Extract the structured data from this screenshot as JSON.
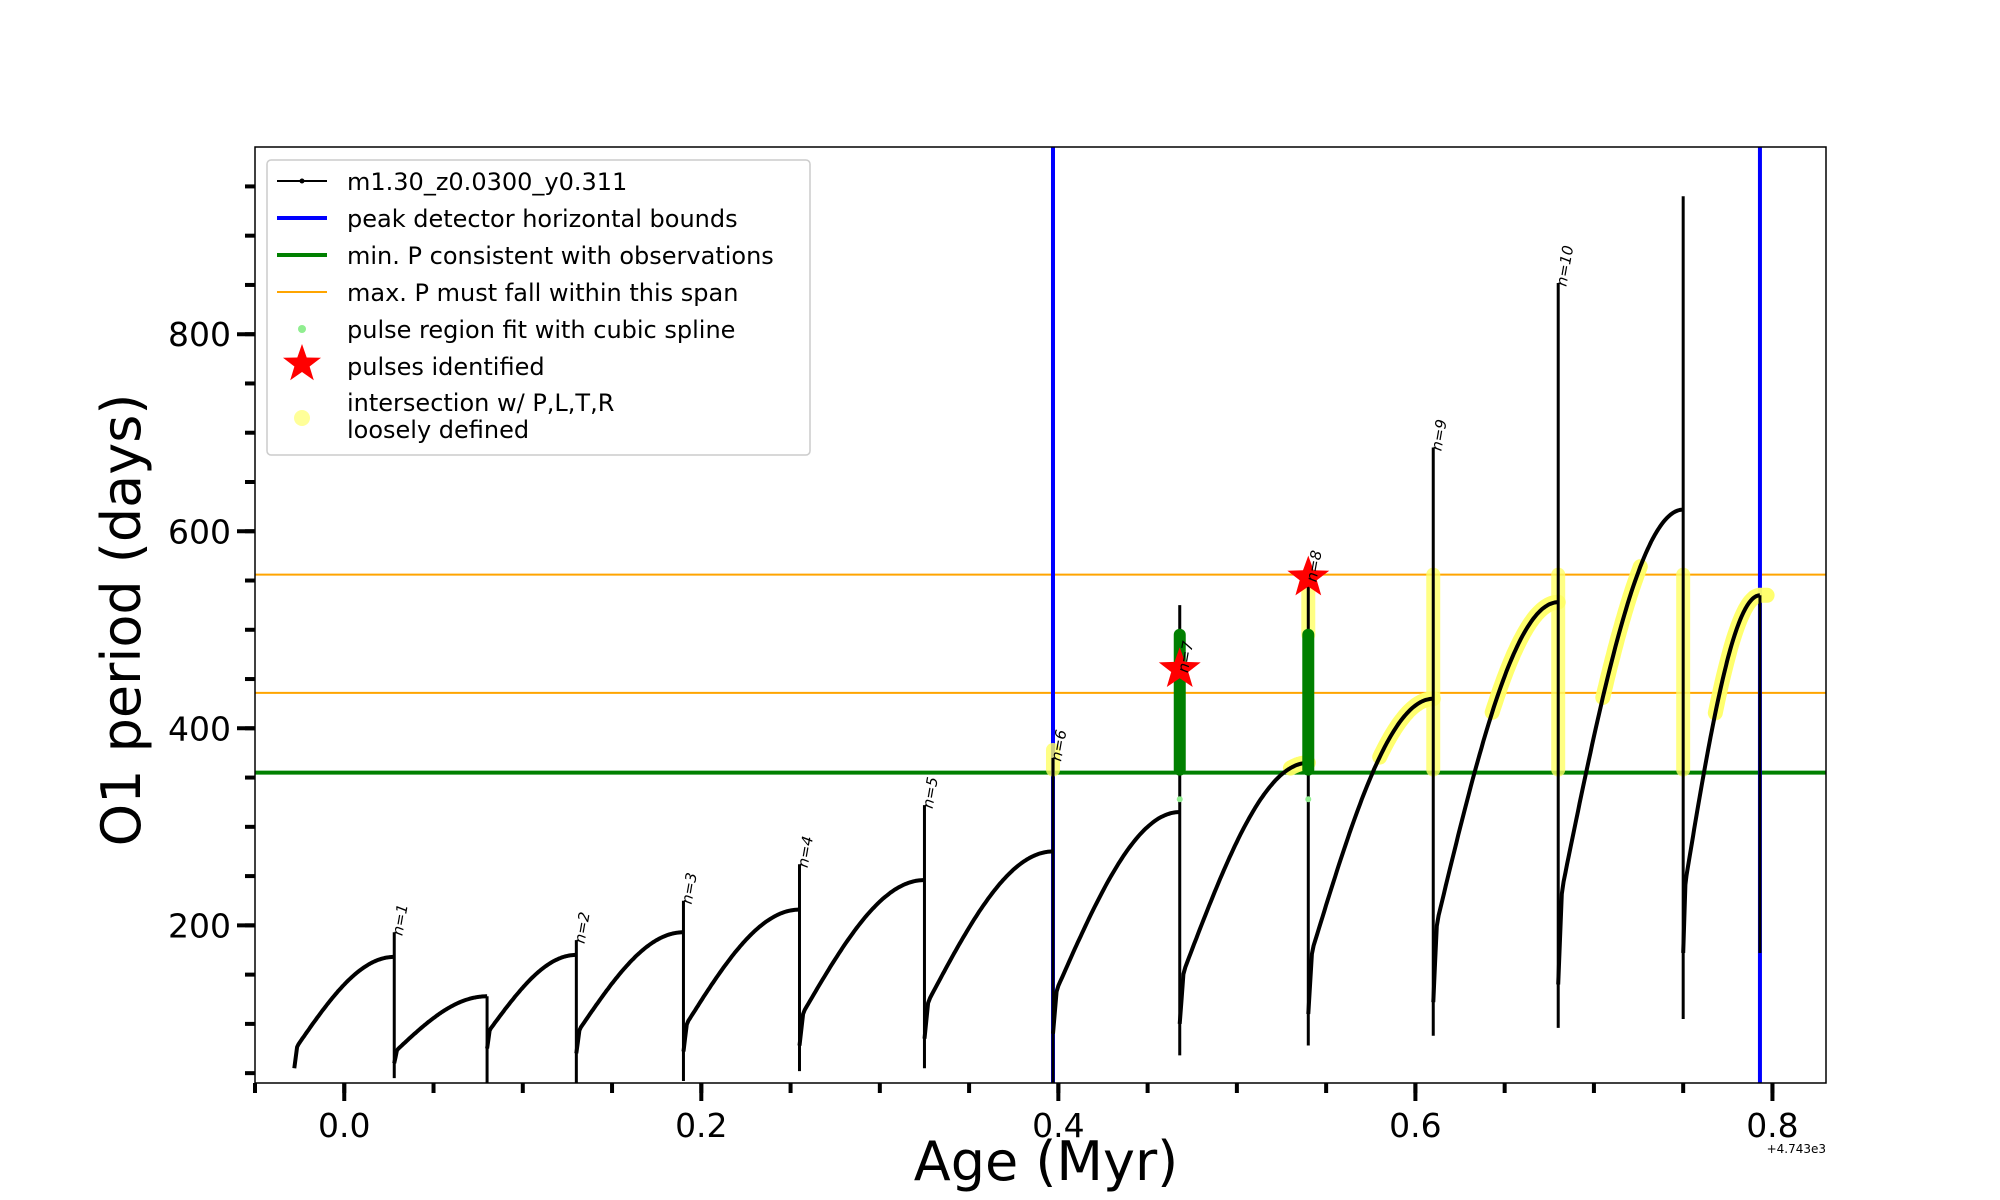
{
  "chart_data": {
    "type": "line",
    "xlabel": "Age (Myr)",
    "ylabel": "O1 period (days)",
    "x_offset_label": "+4.743e3",
    "xlim": [
      -0.05,
      0.83
    ],
    "ylim": [
      40,
      990
    ],
    "x_ticks": [
      {
        "value": 0.0,
        "label": "0.0"
      },
      {
        "value": 0.2,
        "label": "0.2"
      },
      {
        "value": 0.4,
        "label": "0.4"
      },
      {
        "value": 0.6,
        "label": "0.6"
      },
      {
        "value": 0.8,
        "label": "0.8"
      }
    ],
    "x_minor_step": 0.05,
    "y_ticks": [
      {
        "value": 200,
        "label": "200"
      },
      {
        "value": 400,
        "label": "400"
      },
      {
        "value": 600,
        "label": "600"
      },
      {
        "value": 800,
        "label": "800"
      }
    ],
    "y_minor_step": 50,
    "legend_position": "upper-left",
    "legend": [
      {
        "key": "track",
        "label": "m1.30_z0.0300_y0.311",
        "color": "#000000"
      },
      {
        "key": "peak",
        "label": "peak detector horizontal bounds",
        "color": "#0000ff"
      },
      {
        "key": "minp",
        "label": "min. P consistent with observations",
        "color": "#008000"
      },
      {
        "key": "maxp",
        "label": "max. P must fall within this span",
        "color": "#ffa500"
      },
      {
        "key": "spline",
        "label": "pulse region fit with cubic spline",
        "color": "#90ee90"
      },
      {
        "key": "pulses",
        "label": "pulses identified",
        "color": "#ff0000"
      },
      {
        "key": "intersect",
        "label_lines": [
          "intersection w/ P,L,T,R",
          "loosely defined"
        ],
        "color": "#ffff66"
      }
    ],
    "series": [
      {
        "name": "m1.30_z0.0300_y0.311",
        "color": "#000000",
        "cycles": [
          {
            "start": -0.028,
            "end": 0.028,
            "p0": 55,
            "p1": 168,
            "tip": 193,
            "dip": 45
          },
          {
            "start": 0.028,
            "end": 0.08,
            "p0": 60,
            "p1": 128,
            "tip": 128,
            "dip": 40
          },
          {
            "start": 0.08,
            "end": 0.13,
            "p0": 75,
            "p1": 170,
            "tip": 185,
            "dip": 40
          },
          {
            "start": 0.13,
            "end": 0.19,
            "p0": 70,
            "p1": 193,
            "tip": 225,
            "dip": 42
          },
          {
            "start": 0.19,
            "end": 0.255,
            "p0": 72,
            "p1": 216,
            "tip": 262,
            "dip": 52
          },
          {
            "start": 0.255,
            "end": 0.325,
            "p0": 78,
            "p1": 246,
            "tip": 322,
            "dip": 55
          },
          {
            "start": 0.325,
            "end": 0.397,
            "p0": 85,
            "p1": 275,
            "tip": 370,
            "dip": 40
          },
          {
            "start": 0.397,
            "end": 0.468,
            "p0": 90,
            "p1": 315,
            "tip": 525,
            "dip": 68
          },
          {
            "start": 0.468,
            "end": 0.54,
            "p0": 100,
            "p1": 365,
            "tip": 570,
            "dip": 78
          },
          {
            "start": 0.54,
            "end": 0.61,
            "p0": 110,
            "p1": 430,
            "tip": 685,
            "dip": 88
          },
          {
            "start": 0.61,
            "end": 0.68,
            "p0": 122,
            "p1": 528,
            "tip": 852,
            "dip": 96
          },
          {
            "start": 0.68,
            "end": 0.75,
            "p0": 140,
            "p1": 622,
            "tip": 940,
            "dip": 105
          },
          {
            "start": 0.75,
            "end": 0.793,
            "p0": 172,
            "p1": 535,
            "tip": 535,
            "dip": 172
          }
        ]
      }
    ],
    "hlines": [
      {
        "key": "minp",
        "y": 355,
        "color": "#008000"
      },
      {
        "key": "maxp",
        "y": 436,
        "color": "#ffa500"
      },
      {
        "key": "maxp",
        "y": 556,
        "color": "#ffa500"
      }
    ],
    "vlines": [
      {
        "key": "peak",
        "x": 0.397,
        "color": "#0000ff"
      },
      {
        "key": "peak",
        "x": 0.793,
        "color": "#0000ff"
      }
    ],
    "pulse_labels": [
      {
        "x": 0.028,
        "y": 193,
        "text": "n=1"
      },
      {
        "x": 0.13,
        "y": 185,
        "text": "n=2"
      },
      {
        "x": 0.19,
        "y": 225,
        "text": "n=3"
      },
      {
        "x": 0.255,
        "y": 262,
        "text": "n=4"
      },
      {
        "x": 0.325,
        "y": 322,
        "text": "n=5"
      },
      {
        "x": 0.397,
        "y": 370,
        "text": "n=6"
      },
      {
        "x": 0.468,
        "y": 460,
        "text": "n=7"
      },
      {
        "x": 0.54,
        "y": 552,
        "text": "n=8"
      },
      {
        "x": 0.61,
        "y": 685,
        "text": "n=9"
      },
      {
        "x": 0.68,
        "y": 852,
        "text": "n=10"
      }
    ],
    "pulses_identified": [
      {
        "x": 0.468,
        "y": 460
      },
      {
        "x": 0.54,
        "y": 553
      }
    ],
    "green_fit_regions": [
      {
        "x": 0.468,
        "ymin": 358,
        "ymax": 495
      },
      {
        "x": 0.54,
        "ymin": 358,
        "ymax": 495
      }
    ],
    "yellow_vertical_regions": [
      {
        "x": 0.397,
        "ymin": 358,
        "ymax": 378
      },
      {
        "x": 0.54,
        "ymin": 495,
        "ymax": 556
      },
      {
        "x": 0.61,
        "ymin": 358,
        "ymax": 556
      },
      {
        "x": 0.68,
        "ymin": 358,
        "ymax": 556
      },
      {
        "x": 0.75,
        "ymin": 358,
        "ymax": 556
      }
    ],
    "yellow_curve_ranges": [
      {
        "from": 0.53,
        "to": 0.54
      },
      {
        "from": 0.58,
        "to": 0.61
      },
      {
        "from": 0.643,
        "to": 0.68
      },
      {
        "from": 0.705,
        "to": 0.726
      },
      {
        "from": 0.768,
        "to": 0.797
      }
    ]
  }
}
